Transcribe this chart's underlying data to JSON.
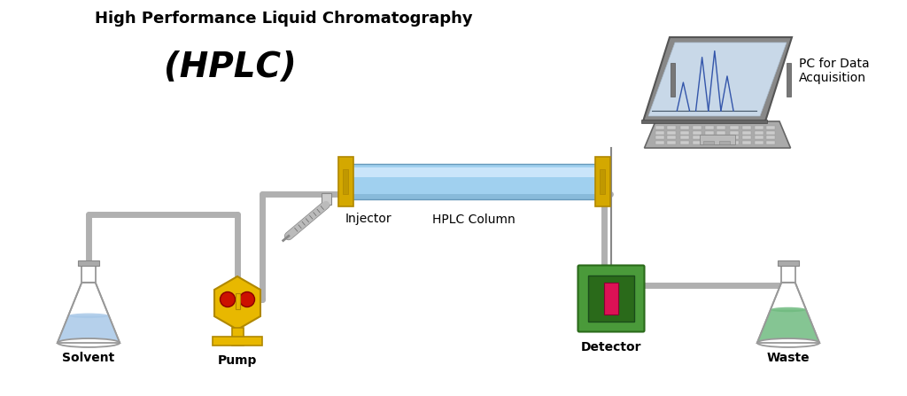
{
  "title_line1": "High Performance Liquid Chromatography",
  "title_line2": "(HPLC)",
  "label_solvent": "Solvent",
  "label_pump": "Pump",
  "label_column": "HPLC Column",
  "label_injector": "Injector",
  "label_detector": "Detector",
  "label_waste": "Waste",
  "label_pc": "PC for Data\nAcquisition",
  "bg_color": "#ffffff",
  "title1_fontsize": 13,
  "title2_fontsize": 28,
  "label_fontsize": 10,
  "tube_color": "#b0b0b0",
  "tube_lw": 5,
  "solvent_flask_liquid": "#a8c8e8",
  "waste_flask_liquid": "#70bb80",
  "pump_body_color": "#e8b800",
  "pump_dark": "#b08800",
  "pump_red": "#cc1100",
  "column_color": "#80c0e0",
  "column_end_color": "#d4a800",
  "detector_body": "#4a9a3a",
  "detector_dark": "#2a6a1a",
  "detector_window": "#dd1155",
  "laptop_body": "#888888",
  "laptop_screen_bg": "#c8d8e8",
  "connector_color": "#999999"
}
